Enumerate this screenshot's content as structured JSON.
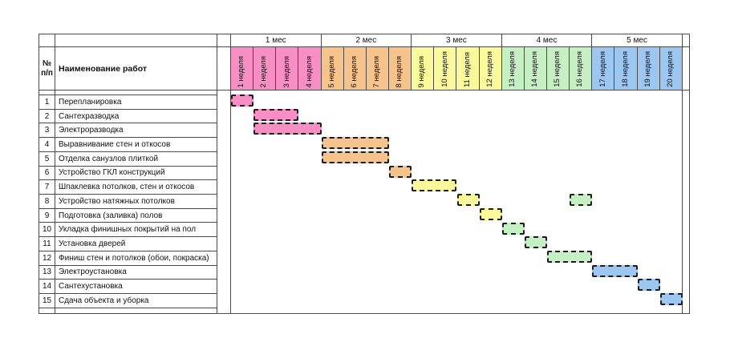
{
  "header": {
    "num_line1": "№",
    "num_line2": "п/п",
    "name_label": "Наименование работ"
  },
  "chart_data": {
    "type": "gantt",
    "title": "",
    "x_axis": {
      "unit": "неделя",
      "week_range": [
        1,
        20
      ],
      "weeks_per_month": 4
    },
    "months": [
      {
        "label": "1 мес",
        "color": "#F78FC5",
        "weeks": [
          1,
          4
        ]
      },
      {
        "label": "2 мес",
        "color": "#F6C38C",
        "weeks": [
          5,
          8
        ]
      },
      {
        "label": "3 мес",
        "color": "#FAFA9C",
        "weeks": [
          9,
          12
        ]
      },
      {
        "label": "4 мес",
        "color": "#C7EFC4",
        "weeks": [
          13,
          16
        ]
      },
      {
        "label": "5 мес",
        "color": "#9DC6F0",
        "weeks": [
          17,
          20
        ]
      }
    ],
    "week_labels": [
      "1 неделя",
      "2 неделя",
      "3 неделя",
      "4 неделя",
      "5 неделя",
      "6 неделя",
      "7 неделя",
      "8 неделя",
      "9 неделя",
      "10 неделя",
      "11 неделя",
      "12 неделя",
      "13 неделя",
      "14 неделя",
      "15 неделя",
      "16 неделя",
      "17 неделя",
      "18 неделя",
      "19 неделя",
      "20 неделя"
    ],
    "tasks": [
      {
        "num": "1",
        "name": "Перепланировка",
        "segments": [
          [
            1,
            1
          ]
        ]
      },
      {
        "num": "2",
        "name": "Сантехразводка",
        "segments": [
          [
            2,
            3
          ]
        ]
      },
      {
        "num": "3",
        "name": "Электроразводка",
        "segments": [
          [
            2,
            4
          ]
        ]
      },
      {
        "num": "4",
        "name": "Выравнивание стен и откосов",
        "segments": [
          [
            5,
            7
          ]
        ]
      },
      {
        "num": "5",
        "name": "Отделка санузлов плиткой",
        "segments": [
          [
            5,
            7
          ]
        ]
      },
      {
        "num": "6",
        "name": "Устройство ГКЛ конструкций",
        "segments": [
          [
            8,
            8
          ]
        ]
      },
      {
        "num": "7",
        "name": "Шпаклевка потолков, стен и откосов",
        "segments": [
          [
            9,
            10
          ]
        ]
      },
      {
        "num": "8",
        "name": "Устройство натяжных потолков",
        "segments": [
          [
            11,
            11
          ],
          [
            16,
            16
          ]
        ]
      },
      {
        "num": "9",
        "name": "Подготовка (заливка) полов",
        "segments": [
          [
            12,
            12
          ]
        ]
      },
      {
        "num": "10",
        "name": "Укладка финишных покрытий на пол",
        "segments": [
          [
            13,
            13
          ]
        ]
      },
      {
        "num": "11",
        "name": "Установка дверей",
        "segments": [
          [
            14,
            14
          ]
        ]
      },
      {
        "num": "12",
        "name": "Финиш стен и потолков (обои, покраска)",
        "segments": [
          [
            15,
            16
          ]
        ]
      },
      {
        "num": "13",
        "name": "Электроустановка",
        "segments": [
          [
            17,
            18
          ]
        ]
      },
      {
        "num": "14",
        "name": "Сантехустановка",
        "segments": [
          [
            19,
            19
          ]
        ]
      },
      {
        "num": "15",
        "name": "Сдача объекта и уборка",
        "segments": [
          [
            20,
            20
          ]
        ]
      }
    ],
    "style": {
      "bar_border_color": "#1c1c1c",
      "grid_line_color": "#4a4a4a",
      "background": "#ffffff"
    }
  }
}
